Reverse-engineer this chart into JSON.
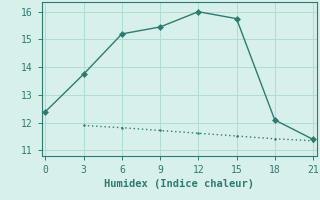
{
  "line1_x": [
    0,
    3,
    6,
    9,
    12,
    15,
    18,
    21
  ],
  "line1_y": [
    12.4,
    13.75,
    15.2,
    15.45,
    16.0,
    15.75,
    12.1,
    11.4
  ],
  "line2_x": [
    3,
    6,
    9,
    12,
    15,
    18,
    21
  ],
  "line2_y": [
    11.9,
    11.82,
    11.72,
    11.62,
    11.52,
    11.42,
    11.35
  ],
  "line_color": "#2a7d6e",
  "background_color": "#d8f0ec",
  "grid_color": "#aeddd6",
  "xlabel": "Humidex (Indice chaleur)",
  "xlim": [
    -0.3,
    21.3
  ],
  "ylim": [
    10.8,
    16.35
  ],
  "xticks": [
    0,
    3,
    6,
    9,
    12,
    15,
    18,
    21
  ],
  "yticks": [
    11,
    12,
    13,
    14,
    15,
    16
  ],
  "xlabel_fontsize": 7.5,
  "tick_fontsize": 7,
  "marker_size": 3,
  "line_width": 1.0,
  "spine_color": "#2a7d6e"
}
